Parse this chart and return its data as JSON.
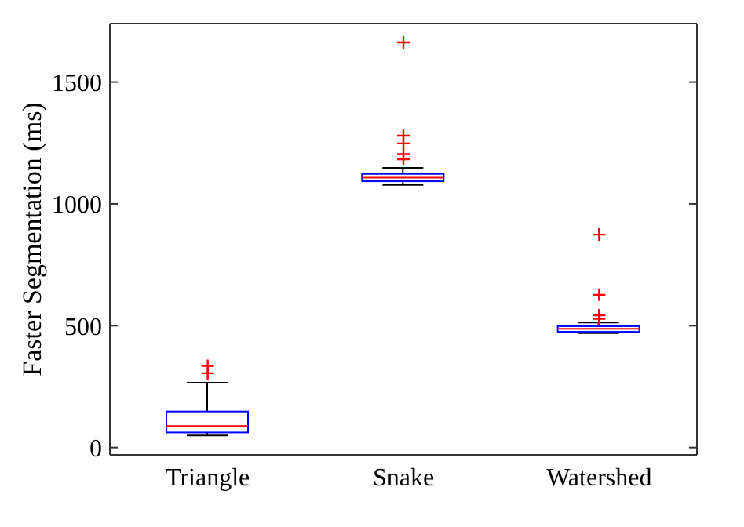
{
  "chart_data": {
    "type": "box",
    "ylabel": "Faster Segmentation (ms)",
    "categories": [
      "Triangle",
      "Snake",
      "Watershed"
    ],
    "ylim": [
      -30,
      1740
    ],
    "yticks": [
      0,
      500,
      1000,
      1500
    ],
    "grid": false,
    "marker": "cross",
    "series": [
      {
        "color": "#0000ff",
        "boxes": [
          {
            "low": 50,
            "q1": 62,
            "median": 88,
            "q3": 148,
            "high": 266,
            "outliers": [
              305,
              335
            ]
          },
          {
            "low": 1078,
            "q1": 1093,
            "median": 1108,
            "q3": 1123,
            "high": 1148,
            "outliers": [
              1183,
              1204,
              1248,
              1280,
              1663
            ]
          },
          {
            "low": 470,
            "q1": 475,
            "median": 487,
            "q3": 498,
            "high": 513,
            "outliers": [
              528,
              543,
              627,
              874
            ]
          }
        ]
      }
    ]
  }
}
